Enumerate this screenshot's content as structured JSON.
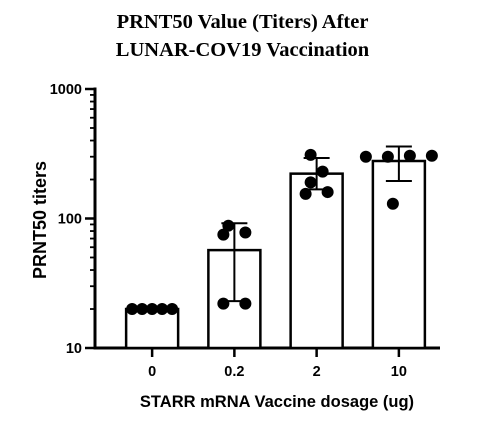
{
  "chart_data": {
    "type": "bar",
    "title_lines": [
      "PRNT50 Value (Titers) After",
      "LUNAR-COV19 Vaccination"
    ],
    "xlabel": "STARR mRNA Vaccine dosage (ug)",
    "ylabel": "PRNT50 titers",
    "yscale": "log",
    "ylim": [
      10,
      1000
    ],
    "yticks": [
      "10",
      "100",
      "1000"
    ],
    "categories": [
      "0",
      "0.2",
      "2",
      "10"
    ],
    "values": [
      20,
      57,
      222,
      278
    ],
    "error_bars": [
      {
        "low": 20,
        "high": 20
      },
      {
        "low": 23,
        "high": 92
      },
      {
        "low": 168,
        "high": 293
      },
      {
        "low": 195,
        "high": 360
      }
    ],
    "points": [
      [
        20,
        20,
        20,
        20,
        20
      ],
      [
        22,
        22,
        75,
        88,
        78
      ],
      [
        155,
        160,
        190,
        230,
        310
      ],
      [
        130,
        300,
        300,
        305,
        305
      ]
    ],
    "grid": false,
    "bar_color": "#ffffff",
    "edge_color": "#000000"
  }
}
